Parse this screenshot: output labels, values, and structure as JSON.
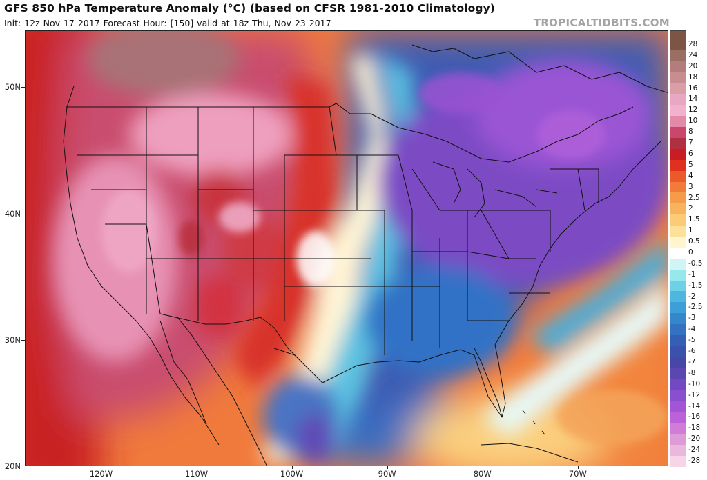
{
  "header": {
    "title": "GFS 850 hPa Temperature Anomaly (°C) (based on CFSR 1981-2010 Climatology)",
    "subtitle": "Init: 12z Nov 17 2017   Forecast Hour: [150]   valid at 18z Thu, Nov 23 2017",
    "credit": "TROPICALTIDBITS.COM"
  },
  "map": {
    "projection": "equirectangular",
    "lon_range": [
      -128,
      -60.5
    ],
    "lat_range": [
      20,
      54.5
    ],
    "lat_labels": [
      {
        "lat": 50,
        "label": "50N"
      },
      {
        "lat": 40,
        "label": "40N"
      },
      {
        "lat": 30,
        "label": "30N"
      },
      {
        "lat": 20,
        "label": "20N"
      }
    ],
    "lon_labels": [
      {
        "lon": -120,
        "label": "120W"
      },
      {
        "lon": -110,
        "label": "110W"
      },
      {
        "lon": -100,
        "label": "100W"
      },
      {
        "lon": -90,
        "label": "90W"
      },
      {
        "lon": -80,
        "label": "80W"
      },
      {
        "lon": -70,
        "label": "70W"
      }
    ]
  },
  "legend": {
    "levels": [
      {
        "label": "28",
        "color": "#7d5544"
      },
      {
        "label": "24",
        "color": "#9a6e62"
      },
      {
        "label": "20",
        "color": "#b37d7d"
      },
      {
        "label": "18",
        "color": "#c88d91"
      },
      {
        "label": "16",
        "color": "#d8a0a6"
      },
      {
        "label": "14",
        "color": "#e8a7c2"
      },
      {
        "label": "12",
        "color": "#f1b2cf"
      },
      {
        "label": "10",
        "color": "#e28aa7"
      },
      {
        "label": "8",
        "color": "#c8476a"
      },
      {
        "label": "7",
        "color": "#b02f41"
      },
      {
        "label": "6",
        "color": "#c71d23"
      },
      {
        "label": "5",
        "color": "#e0301f"
      },
      {
        "label": "4",
        "color": "#ec5a2c"
      },
      {
        "label": "3",
        "color": "#f17b3a"
      },
      {
        "label": "2.5",
        "color": "#f69b4a"
      },
      {
        "label": "2",
        "color": "#f8b35f"
      },
      {
        "label": "1.5",
        "color": "#fbcb78"
      },
      {
        "label": "1",
        "color": "#fde19a"
      },
      {
        "label": "0.5",
        "color": "#fff5cf"
      },
      {
        "label": "0",
        "color": "#ffffff"
      },
      {
        "label": "-0.5",
        "color": "#cff5f5"
      },
      {
        "label": "-1",
        "color": "#95e8ec"
      },
      {
        "label": "-1.5",
        "color": "#6fd1e6"
      },
      {
        "label": "-2",
        "color": "#4eb7df"
      },
      {
        "label": "-2.5",
        "color": "#3e9ed8"
      },
      {
        "label": "-3",
        "color": "#3587cc"
      },
      {
        "label": "-4",
        "color": "#3471c1"
      },
      {
        "label": "-5",
        "color": "#345fb5"
      },
      {
        "label": "-6",
        "color": "#3b52ad"
      },
      {
        "label": "-7",
        "color": "#4747a8"
      },
      {
        "label": "-8",
        "color": "#5a48b0"
      },
      {
        "label": "-10",
        "color": "#7249c0"
      },
      {
        "label": "-12",
        "color": "#8a4fcf"
      },
      {
        "label": "-14",
        "color": "#a455d6"
      },
      {
        "label": "-16",
        "color": "#bc62d8"
      },
      {
        "label": "-18",
        "color": "#cf7dd6"
      },
      {
        "label": "-20",
        "color": "#dd9bd8"
      },
      {
        "label": "-24",
        "color": "#eab8dd"
      },
      {
        "label": "-28",
        "color": "#f5d5e6"
      }
    ]
  }
}
